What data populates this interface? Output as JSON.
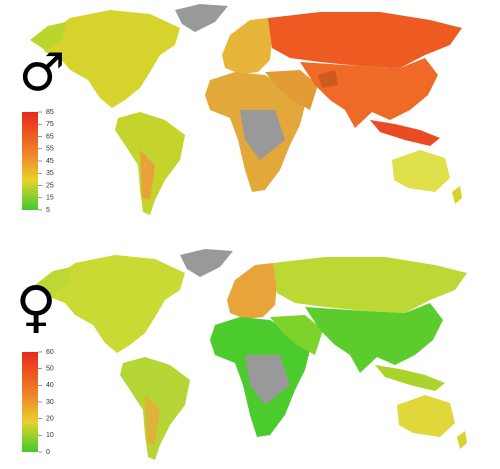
{
  "maps": [
    {
      "symbol": "♂",
      "legend": {
        "ticks": [
          85,
          75,
          65,
          55,
          45,
          35,
          25,
          15,
          5
        ]
      }
    },
    {
      "symbol": "♀",
      "legend": {
        "ticks": [
          60,
          50,
          40,
          30,
          20,
          10,
          0
        ]
      }
    }
  ]
}
